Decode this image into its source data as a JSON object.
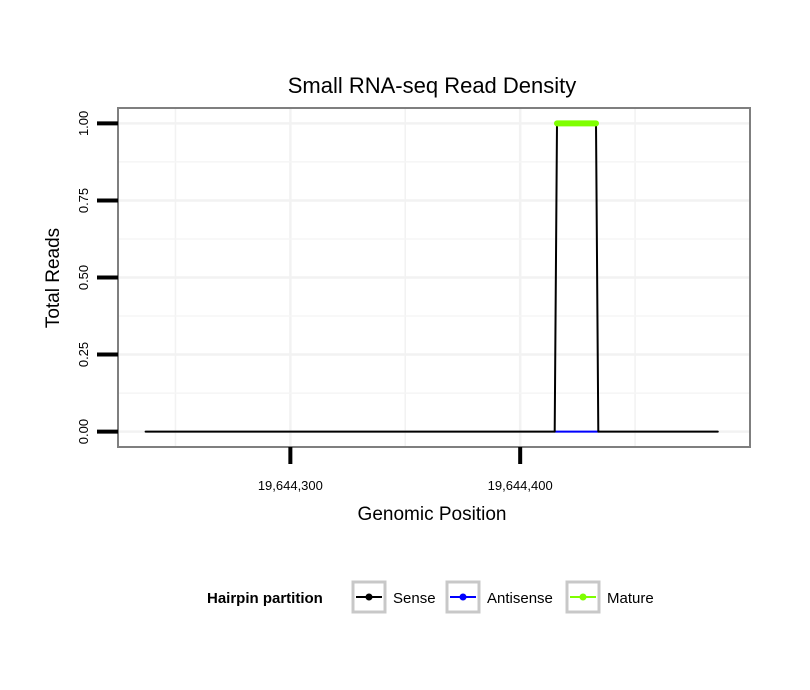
{
  "chart_data": {
    "type": "line",
    "title": "Small RNA-seq Read Density",
    "xlabel": "Genomic Position",
    "ylabel": "Total Reads",
    "xlim": [
      19644225,
      19644500
    ],
    "ylim": [
      -0.05,
      1.05
    ],
    "x_ticks": [
      19644300,
      19644400
    ],
    "x_tick_labels": [
      "19,644,300",
      "19,644,400"
    ],
    "y_ticks": [
      0,
      0.25,
      0.5,
      0.75,
      1
    ],
    "y_tick_labels": [
      "0.00",
      "0.25",
      "0.50",
      "0.75",
      "1.00"
    ],
    "grid": true,
    "legend_position": "bottom",
    "legend_title": "Hairpin partition",
    "series": [
      {
        "name": "Sense",
        "color": "#000000",
        "x": [
          19644237,
          19644415,
          19644416,
          19644433,
          19644434,
          19644486
        ],
        "y": [
          0,
          0,
          1,
          1,
          0,
          0
        ]
      },
      {
        "name": "Antisense",
        "color": "#0000ff",
        "x": [
          19644415,
          19644434
        ],
        "y": [
          0,
          0
        ]
      },
      {
        "name": "Mature",
        "color": "#7fff00",
        "x": [
          19644416,
          19644433
        ],
        "y": [
          1,
          1
        ]
      }
    ]
  }
}
